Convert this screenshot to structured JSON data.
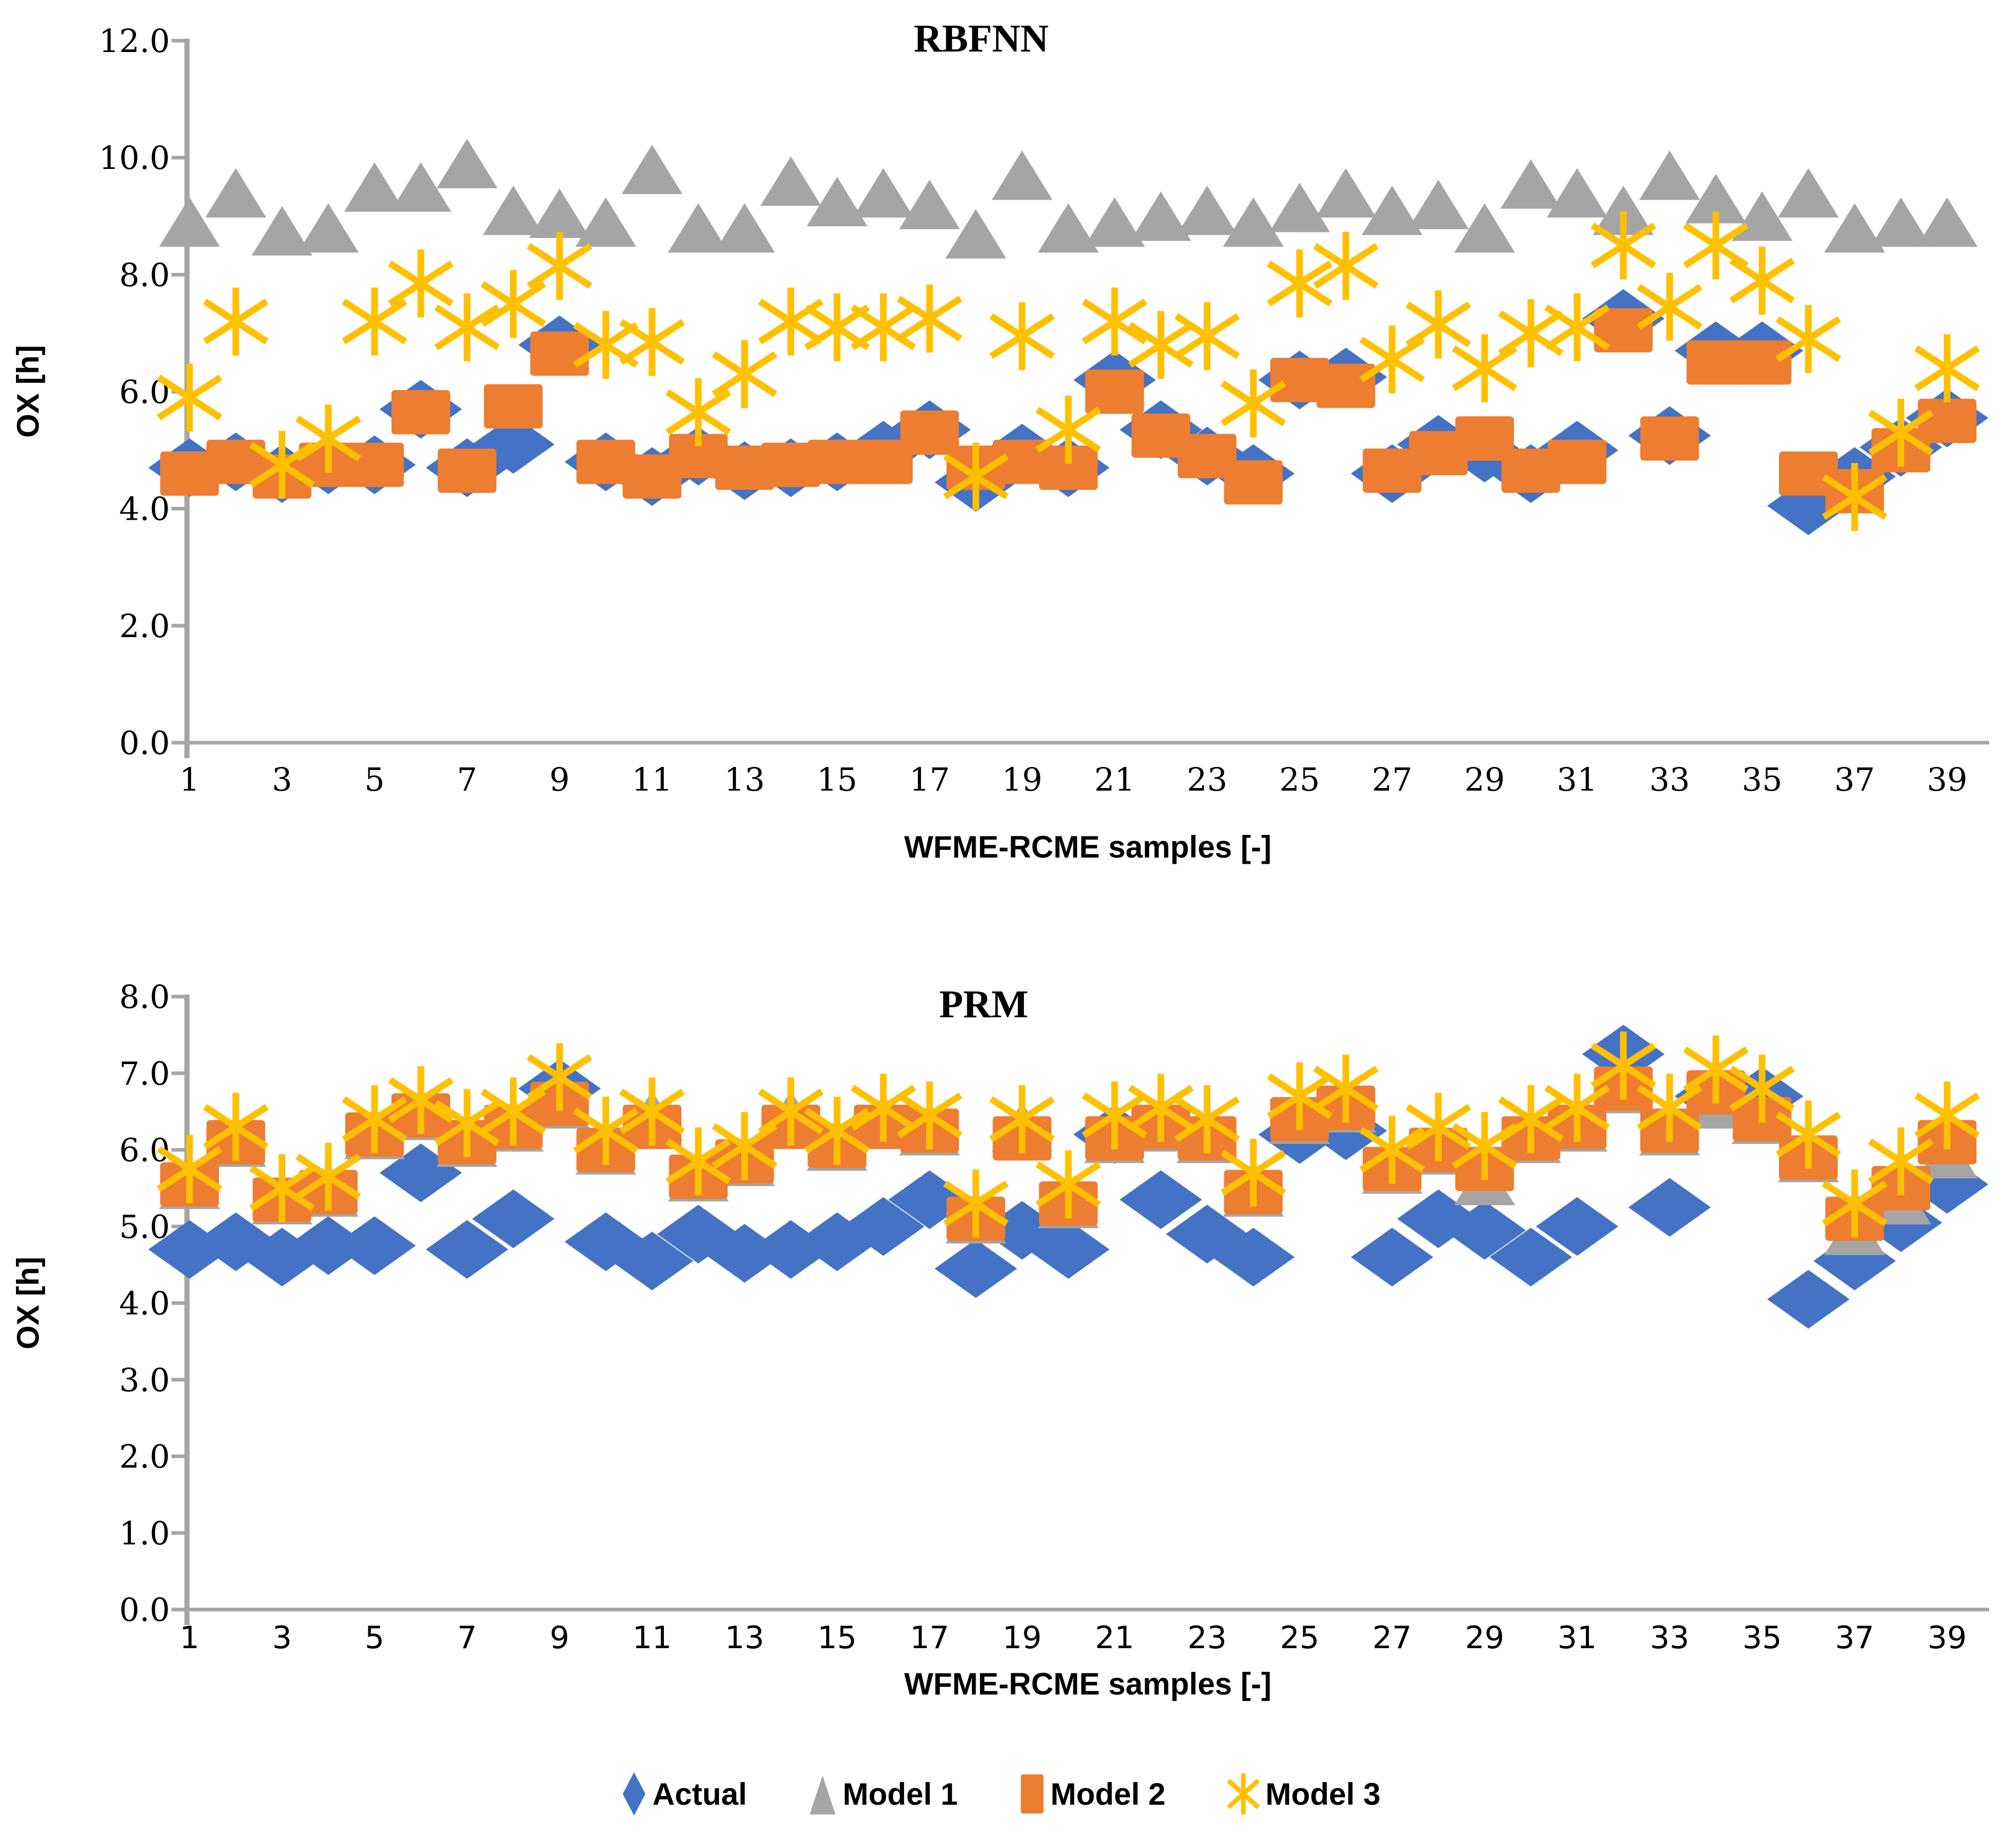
{
  "page": {
    "background": "#ffffff",
    "colors": {
      "actual": "#4472C4",
      "model1": "#A5A5A5",
      "model2": "#ED7D31",
      "model3": "#FFC000",
      "axis": "#A6A6A6",
      "text": "#000000"
    }
  },
  "legend": {
    "items": [
      {
        "label": "Actual",
        "series": "actual",
        "marker": "diamond",
        "color": "#4472C4"
      },
      {
        "label": "Model 1",
        "series": "model1",
        "marker": "triangle",
        "color": "#A5A5A5"
      },
      {
        "label": "Model 2",
        "series": "model2",
        "marker": "square",
        "color": "#ED7D31"
      },
      {
        "label": "Model 3",
        "series": "model3",
        "marker": "star",
        "color": "#FFC000"
      }
    ]
  },
  "chart_data": [
    {
      "type": "scatter",
      "title": "RBFNN",
      "xlabel": "WFME-RCME samples [-]",
      "ylabel": "OX [h]",
      "ylim": [
        0.0,
        12.0
      ],
      "ytick_step": 2.0,
      "ytick_labels": [
        "0.0",
        "2.0",
        "4.0",
        "6.0",
        "8.0",
        "10.0",
        "12.0"
      ],
      "xtick_labels": [
        1,
        3,
        5,
        7,
        9,
        11,
        13,
        15,
        17,
        19,
        21,
        23,
        25,
        27,
        29,
        31,
        33,
        35,
        37,
        39
      ],
      "grid": false,
      "legend_position": "shared-bottom",
      "x": [
        1,
        2,
        3,
        4,
        5,
        6,
        7,
        8,
        9,
        10,
        11,
        12,
        13,
        14,
        15,
        16,
        17,
        18,
        19,
        20,
        21,
        22,
        23,
        24,
        25,
        26,
        27,
        28,
        29,
        30,
        31,
        32,
        33,
        34,
        35,
        36,
        37,
        38,
        39
      ],
      "series": [
        {
          "name": "Actual",
          "marker": "diamond",
          "color": "#4472C4",
          "values": [
            4.7,
            4.8,
            4.6,
            4.75,
            4.75,
            5.7,
            4.7,
            5.1,
            6.8,
            4.8,
            4.55,
            4.9,
            4.65,
            4.7,
            4.8,
            5.0,
            5.35,
            4.45,
            4.95,
            4.7,
            6.2,
            5.35,
            4.9,
            4.6,
            6.2,
            6.25,
            4.6,
            5.1,
            4.95,
            4.6,
            5.0,
            7.25,
            5.25,
            6.7,
            6.7,
            4.05,
            4.55,
            5.05,
            5.55
          ]
        },
        {
          "name": "Model 1",
          "marker": "triangle",
          "color": "#A5A5A5",
          "values": [
            8.9,
            9.4,
            8.75,
            8.8,
            9.5,
            9.5,
            9.9,
            9.1,
            9.05,
            8.9,
            9.8,
            8.8,
            8.8,
            9.6,
            9.25,
            9.4,
            9.2,
            8.7,
            9.7,
            8.8,
            8.9,
            9.0,
            9.1,
            8.9,
            9.15,
            9.4,
            9.1,
            9.2,
            8.8,
            9.55,
            9.4,
            9.1,
            9.7,
            9.3,
            9.0,
            9.4,
            8.8,
            8.9,
            8.9
          ]
        },
        {
          "name": "Model 2",
          "marker": "square",
          "color": "#ED7D31",
          "values": [
            4.6,
            4.8,
            4.55,
            4.75,
            4.75,
            5.65,
            4.65,
            5.75,
            6.65,
            4.8,
            4.55,
            4.9,
            4.7,
            4.75,
            4.8,
            4.8,
            5.3,
            4.7,
            4.8,
            4.7,
            6.0,
            5.25,
            4.9,
            4.45,
            6.2,
            6.1,
            4.65,
            4.95,
            5.2,
            4.65,
            4.8,
            7.05,
            5.2,
            6.5,
            6.5,
            4.6,
            4.3,
            5.0,
            5.5
          ]
        },
        {
          "name": "Model 3",
          "marker": "star",
          "color": "#FFC000",
          "values": [
            5.9,
            7.2,
            4.75,
            5.2,
            7.2,
            7.85,
            7.1,
            7.5,
            8.15,
            6.8,
            6.85,
            5.65,
            6.3,
            7.2,
            7.1,
            7.1,
            7.25,
            4.55,
            6.95,
            5.35,
            7.2,
            6.8,
            6.95,
            5.8,
            7.85,
            8.15,
            6.55,
            7.15,
            6.4,
            7.0,
            7.1,
            8.5,
            7.45,
            8.5,
            7.9,
            6.9,
            4.2,
            5.3,
            6.4
          ]
        }
      ]
    },
    {
      "type": "scatter",
      "title": "PRM",
      "xlabel": "WFME-RCME samples [-]",
      "ylabel": "OX [h]",
      "ylim": [
        0.0,
        8.0
      ],
      "ytick_step": 1.0,
      "ytick_labels": [
        "0.0",
        "1.0",
        "2.0",
        "3.0",
        "4.0",
        "5.0",
        "6.0",
        "7.0",
        "8.0"
      ],
      "xtick_labels": [
        1,
        3,
        5,
        7,
        9,
        11,
        13,
        15,
        17,
        19,
        21,
        23,
        25,
        27,
        29,
        31,
        33,
        35,
        37,
        39
      ],
      "grid": false,
      "legend_position": "shared-bottom",
      "x": [
        1,
        2,
        3,
        4,
        5,
        6,
        7,
        8,
        9,
        10,
        11,
        12,
        13,
        14,
        15,
        16,
        17,
        18,
        19,
        20,
        21,
        22,
        23,
        24,
        25,
        26,
        27,
        28,
        29,
        30,
        31,
        32,
        33,
        34,
        35,
        36,
        37,
        38,
        39
      ],
      "series": [
        {
          "name": "Actual",
          "marker": "diamond",
          "color": "#4472C4",
          "values": [
            4.7,
            4.8,
            4.6,
            4.75,
            4.75,
            5.7,
            4.7,
            5.1,
            6.8,
            4.8,
            4.55,
            4.9,
            4.65,
            4.7,
            4.8,
            5.0,
            5.35,
            4.45,
            4.95,
            4.7,
            6.2,
            5.35,
            4.9,
            4.6,
            6.2,
            6.25,
            4.6,
            5.1,
            4.95,
            4.6,
            5.0,
            7.25,
            5.25,
            6.7,
            6.7,
            4.05,
            4.55,
            5.05,
            5.55
          ]
        },
        {
          "name": "Model 1",
          "marker": "triangle",
          "color": "#A5A5A5",
          "values": [
            5.55,
            6.1,
            5.35,
            5.45,
            6.2,
            6.45,
            6.1,
            6.3,
            6.6,
            6.0,
            6.45,
            5.65,
            5.85,
            6.45,
            6.05,
            6.4,
            6.25,
            5.1,
            6.3,
            5.3,
            6.15,
            6.3,
            6.15,
            5.45,
            6.4,
            6.55,
            5.75,
            6.0,
            5.6,
            6.15,
            6.3,
            6.8,
            6.25,
            6.6,
            6.4,
            5.9,
            4.95,
            5.35,
            5.95
          ]
        },
        {
          "name": "Model 2",
          "marker": "square",
          "color": "#ED7D31",
          "values": [
            5.55,
            6.1,
            5.35,
            5.45,
            6.2,
            6.45,
            6.1,
            6.3,
            6.6,
            6.0,
            6.3,
            5.65,
            5.85,
            6.3,
            6.05,
            6.3,
            6.25,
            5.1,
            6.15,
            5.3,
            6.15,
            6.3,
            6.15,
            5.45,
            6.4,
            6.55,
            5.75,
            6.0,
            5.75,
            6.15,
            6.3,
            6.8,
            6.25,
            6.75,
            6.4,
            5.9,
            5.1,
            5.5,
            6.1
          ]
        },
        {
          "name": "Model 3",
          "marker": "star",
          "color": "#FFC000",
          "values": [
            5.75,
            6.3,
            5.5,
            5.65,
            6.4,
            6.65,
            6.35,
            6.5,
            6.95,
            6.25,
            6.5,
            5.85,
            6.05,
            6.5,
            6.25,
            6.55,
            6.45,
            5.3,
            6.4,
            5.55,
            6.45,
            6.55,
            6.4,
            5.7,
            6.7,
            6.8,
            6.0,
            6.3,
            6.05,
            6.4,
            6.55,
            7.1,
            6.55,
            7.05,
            6.8,
            6.2,
            5.3,
            5.85,
            6.45
          ]
        }
      ]
    }
  ]
}
